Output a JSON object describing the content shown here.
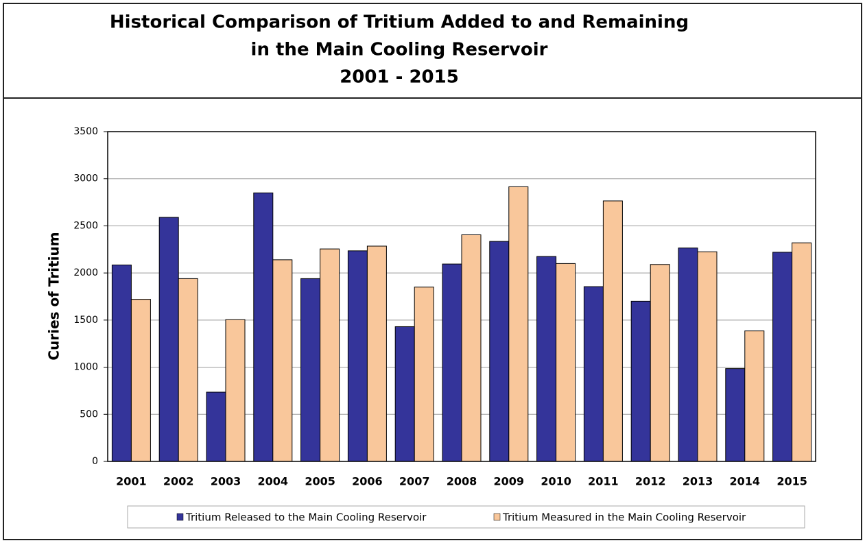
{
  "chart_data": {
    "type": "bar",
    "title": [
      "Historical Comparison of Tritium Added to and Remaining",
      "in the Main Cooling Reservoir",
      "2001 - 2015"
    ],
    "y_label": "Curies of Tritium",
    "categories": [
      "2001",
      "2002",
      "2003",
      "2004",
      "2005",
      "2006",
      "2007",
      "2008",
      "2009",
      "2010",
      "2011",
      "2012",
      "2013",
      "2014",
      "2015"
    ],
    "series": [
      {
        "name": "Tritium Released to the Main Cooling Reservoir",
        "color": "#34349a",
        "values": [
          2085,
          2590,
          735,
          2850,
          1940,
          2235,
          1430,
          2095,
          2335,
          2175,
          1855,
          1700,
          2265,
          985,
          2220
        ]
      },
      {
        "name": "Tritium Measured in the Main Cooling Reservoir",
        "color": "#f9c79b",
        "values": [
          1720,
          1940,
          1505,
          2140,
          2255,
          2285,
          1850,
          2405,
          2915,
          2100,
          2765,
          2090,
          2225,
          1385,
          2320
        ]
      }
    ],
    "ylim": [
      0,
      3500
    ],
    "yticks": [
      0,
      500,
      1000,
      1500,
      2000,
      2500,
      3000,
      3500
    ],
    "grid": true
  }
}
